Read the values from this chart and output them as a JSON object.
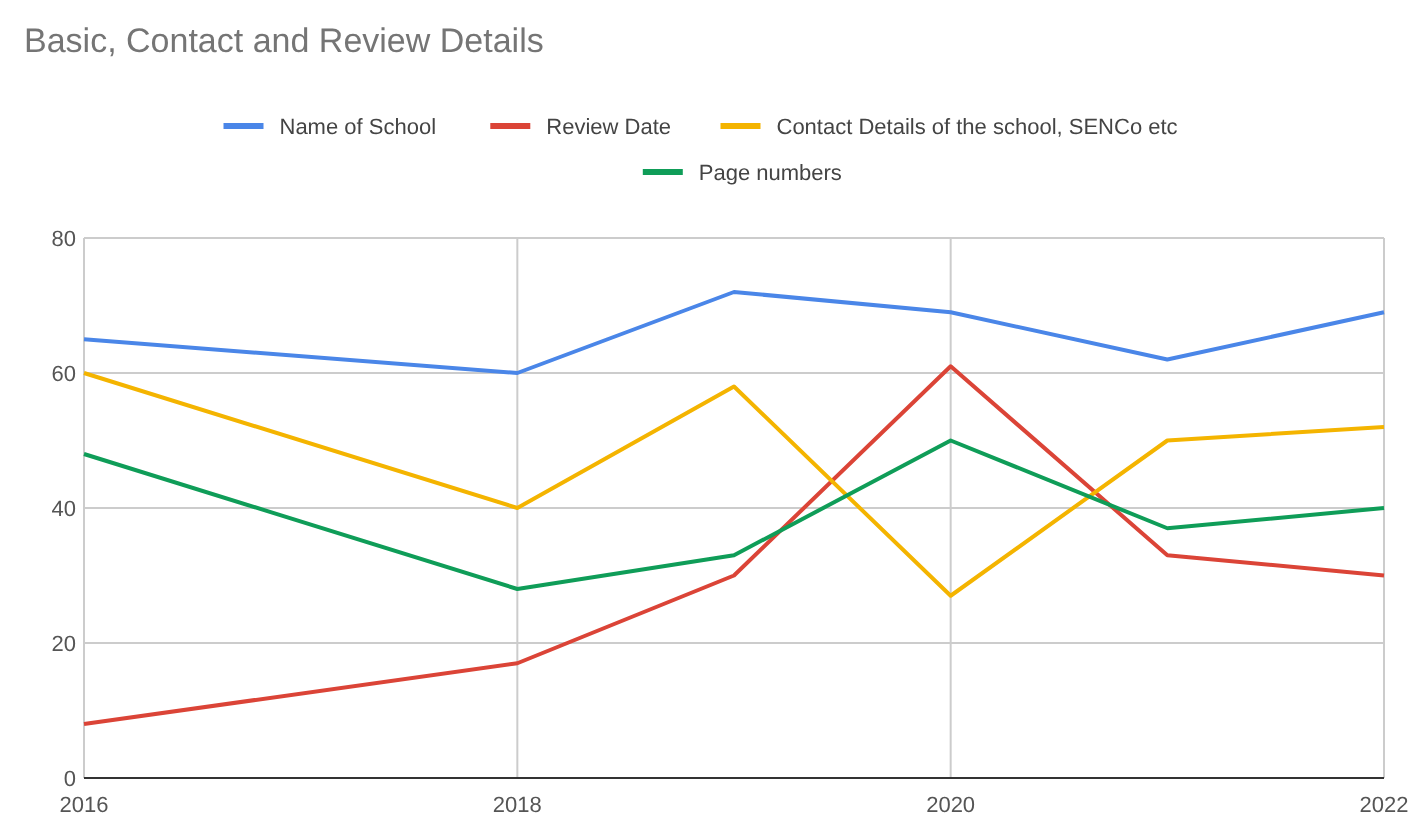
{
  "chart_data": {
    "type": "line",
    "title": "Basic, Contact and Review Details",
    "x": [
      2016,
      2018,
      2019,
      2020,
      2021,
      2022
    ],
    "xlim": [
      2016,
      2022
    ],
    "xticks": [
      2016,
      2018,
      2020,
      2022
    ],
    "ylim": [
      0,
      80
    ],
    "yticks": [
      0,
      20,
      40,
      60,
      80
    ],
    "grid": true,
    "legend": "top",
    "marker": "none",
    "line_style": "solid",
    "series": [
      {
        "name": "Name of School",
        "color": "#4a86e8",
        "values": [
          65,
          60,
          72,
          69,
          62,
          69
        ]
      },
      {
        "name": "Review Date",
        "color": "#db4437",
        "values": [
          8,
          17,
          30,
          61,
          33,
          30
        ]
      },
      {
        "name": "Contact Details of the school, SENCo etc",
        "color": "#f4b400",
        "values": [
          60,
          40,
          58,
          27,
          50,
          52
        ]
      },
      {
        "name": "Page numbers",
        "color": "#0f9d58",
        "values": [
          48,
          28,
          33,
          50,
          37,
          40
        ]
      }
    ]
  }
}
